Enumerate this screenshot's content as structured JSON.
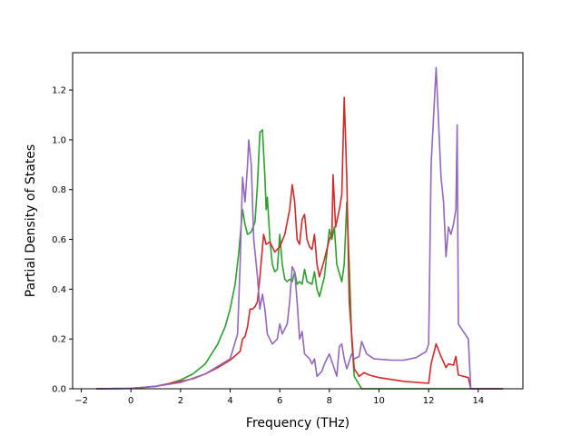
{
  "chart_data": {
    "type": "line",
    "title": "",
    "xlabel": "Frequency (THz)",
    "ylabel": "Partial Density of States",
    "xlim": [
      -2.35,
      15.8
    ],
    "ylim": [
      0,
      1.35
    ],
    "xticks": [
      -2,
      0,
      2,
      4,
      6,
      8,
      10,
      12,
      14
    ],
    "xtick_labels": [
      "−2",
      "0",
      "2",
      "4",
      "6",
      "8",
      "10",
      "12",
      "14"
    ],
    "yticks": [
      0.0,
      0.2,
      0.4,
      0.6,
      0.8,
      1.0,
      1.2
    ],
    "ytick_labels": [
      "0.0",
      "0.2",
      "0.4",
      "0.6",
      "0.8",
      "1.0",
      "1.2"
    ],
    "grid": false,
    "legend": "none",
    "series": [
      {
        "color": "#2ca02c",
        "points": [
          [
            -1.4,
            0.0
          ],
          [
            -0.5,
            0.0
          ],
          [
            0.0,
            0.002
          ],
          [
            0.5,
            0.005
          ],
          [
            1.0,
            0.01
          ],
          [
            1.5,
            0.02
          ],
          [
            2.0,
            0.035
          ],
          [
            2.5,
            0.06
          ],
          [
            3.0,
            0.1
          ],
          [
            3.5,
            0.18
          ],
          [
            3.8,
            0.25
          ],
          [
            4.0,
            0.32
          ],
          [
            4.2,
            0.42
          ],
          [
            4.35,
            0.55
          ],
          [
            4.5,
            0.72
          ],
          [
            4.6,
            0.66
          ],
          [
            4.7,
            0.62
          ],
          [
            4.85,
            0.63
          ],
          [
            5.0,
            0.67
          ],
          [
            5.1,
            0.82
          ],
          [
            5.2,
            1.03
          ],
          [
            5.3,
            1.04
          ],
          [
            5.4,
            0.85
          ],
          [
            5.45,
            0.72
          ],
          [
            5.5,
            0.77
          ],
          [
            5.6,
            0.6
          ],
          [
            5.7,
            0.5
          ],
          [
            5.8,
            0.47
          ],
          [
            5.9,
            0.48
          ],
          [
            6.0,
            0.62
          ],
          [
            6.1,
            0.5
          ],
          [
            6.2,
            0.44
          ],
          [
            6.3,
            0.43
          ],
          [
            6.4,
            0.44
          ],
          [
            6.5,
            0.43
          ],
          [
            6.6,
            0.47
          ],
          [
            6.7,
            0.42
          ],
          [
            6.8,
            0.43
          ],
          [
            6.9,
            0.42
          ],
          [
            7.0,
            0.48
          ],
          [
            7.1,
            0.43
          ],
          [
            7.3,
            0.42
          ],
          [
            7.4,
            0.47
          ],
          [
            7.5,
            0.4
          ],
          [
            7.6,
            0.37
          ],
          [
            7.8,
            0.45
          ],
          [
            8.0,
            0.64
          ],
          [
            8.1,
            0.6
          ],
          [
            8.2,
            0.65
          ],
          [
            8.3,
            0.5
          ],
          [
            8.5,
            0.43
          ],
          [
            8.6,
            0.5
          ],
          [
            8.7,
            0.75
          ],
          [
            8.8,
            0.5
          ],
          [
            8.9,
            0.2
          ],
          [
            9.0,
            0.05
          ],
          [
            9.3,
            0.0
          ],
          [
            10.0,
            0.0
          ],
          [
            12.0,
            0.0
          ],
          [
            15.0,
            0.0
          ]
        ]
      },
      {
        "color": "#d62728",
        "points": [
          [
            -1.4,
            0.0
          ],
          [
            0.0,
            0.002
          ],
          [
            1.0,
            0.01
          ],
          [
            2.0,
            0.03
          ],
          [
            2.5,
            0.04
          ],
          [
            3.0,
            0.06
          ],
          [
            3.5,
            0.085
          ],
          [
            4.0,
            0.115
          ],
          [
            4.4,
            0.15
          ],
          [
            4.5,
            0.2
          ],
          [
            4.6,
            0.21
          ],
          [
            4.7,
            0.25
          ],
          [
            4.8,
            0.32
          ],
          [
            4.9,
            0.32
          ],
          [
            5.0,
            0.33
          ],
          [
            5.1,
            0.35
          ],
          [
            5.2,
            0.45
          ],
          [
            5.35,
            0.62
          ],
          [
            5.45,
            0.58
          ],
          [
            5.6,
            0.59
          ],
          [
            5.8,
            0.55
          ],
          [
            6.0,
            0.57
          ],
          [
            6.2,
            0.62
          ],
          [
            6.4,
            0.72
          ],
          [
            6.5,
            0.82
          ],
          [
            6.6,
            0.75
          ],
          [
            6.7,
            0.6
          ],
          [
            6.8,
            0.58
          ],
          [
            6.9,
            0.68
          ],
          [
            7.0,
            0.7
          ],
          [
            7.1,
            0.6
          ],
          [
            7.2,
            0.57
          ],
          [
            7.3,
            0.56
          ],
          [
            7.4,
            0.62
          ],
          [
            7.5,
            0.5
          ],
          [
            7.6,
            0.45
          ],
          [
            7.8,
            0.52
          ],
          [
            8.0,
            0.6
          ],
          [
            8.1,
            0.62
          ],
          [
            8.15,
            0.86
          ],
          [
            8.25,
            0.65
          ],
          [
            8.4,
            0.72
          ],
          [
            8.5,
            0.78
          ],
          [
            8.6,
            1.17
          ],
          [
            8.7,
            0.85
          ],
          [
            8.8,
            0.35
          ],
          [
            9.0,
            0.08
          ],
          [
            9.2,
            0.05
          ],
          [
            9.4,
            0.065
          ],
          [
            9.6,
            0.055
          ],
          [
            10.0,
            0.045
          ],
          [
            11.0,
            0.03
          ],
          [
            12.0,
            0.022
          ],
          [
            12.1,
            0.1
          ],
          [
            12.3,
            0.18
          ],
          [
            12.5,
            0.13
          ],
          [
            12.7,
            0.085
          ],
          [
            12.8,
            0.1
          ],
          [
            13.0,
            0.095
          ],
          [
            13.1,
            0.13
          ],
          [
            13.2,
            0.055
          ],
          [
            13.6,
            0.045
          ],
          [
            13.7,
            0.0
          ],
          [
            15.0,
            0.0
          ]
        ]
      },
      {
        "color": "#9467bd",
        "points": [
          [
            -1.4,
            0.0
          ],
          [
            0.0,
            0.002
          ],
          [
            1.0,
            0.01
          ],
          [
            2.0,
            0.025
          ],
          [
            3.0,
            0.06
          ],
          [
            4.0,
            0.12
          ],
          [
            4.3,
            0.22
          ],
          [
            4.4,
            0.5
          ],
          [
            4.5,
            0.85
          ],
          [
            4.6,
            0.75
          ],
          [
            4.7,
            0.9
          ],
          [
            4.75,
            1.0
          ],
          [
            4.85,
            0.9
          ],
          [
            4.95,
            0.6
          ],
          [
            5.1,
            0.45
          ],
          [
            5.2,
            0.32
          ],
          [
            5.3,
            0.38
          ],
          [
            5.4,
            0.32
          ],
          [
            5.5,
            0.22
          ],
          [
            5.7,
            0.18
          ],
          [
            5.9,
            0.2
          ],
          [
            6.0,
            0.26
          ],
          [
            6.1,
            0.22
          ],
          [
            6.3,
            0.26
          ],
          [
            6.4,
            0.35
          ],
          [
            6.5,
            0.49
          ],
          [
            6.6,
            0.47
          ],
          [
            6.7,
            0.35
          ],
          [
            6.8,
            0.2
          ],
          [
            6.9,
            0.23
          ],
          [
            7.0,
            0.14
          ],
          [
            7.2,
            0.12
          ],
          [
            7.3,
            0.1
          ],
          [
            7.4,
            0.12
          ],
          [
            7.5,
            0.05
          ],
          [
            7.7,
            0.07
          ],
          [
            7.8,
            0.1
          ],
          [
            8.0,
            0.14
          ],
          [
            8.2,
            0.08
          ],
          [
            8.3,
            0.05
          ],
          [
            8.4,
            0.17
          ],
          [
            8.5,
            0.18
          ],
          [
            8.6,
            0.12
          ],
          [
            8.7,
            0.08
          ],
          [
            8.9,
            0.14
          ],
          [
            9.0,
            0.12
          ],
          [
            9.2,
            0.13
          ],
          [
            9.3,
            0.19
          ],
          [
            9.5,
            0.14
          ],
          [
            9.8,
            0.12
          ],
          [
            10.5,
            0.115
          ],
          [
            11.0,
            0.115
          ],
          [
            11.5,
            0.125
          ],
          [
            11.9,
            0.15
          ],
          [
            12.0,
            0.18
          ],
          [
            12.1,
            0.9
          ],
          [
            12.3,
            1.29
          ],
          [
            12.5,
            0.85
          ],
          [
            12.6,
            0.75
          ],
          [
            12.7,
            0.53
          ],
          [
            12.8,
            0.65
          ],
          [
            12.9,
            0.62
          ],
          [
            13.0,
            0.66
          ],
          [
            13.1,
            0.72
          ],
          [
            13.15,
            1.06
          ],
          [
            13.2,
            0.26
          ],
          [
            13.4,
            0.23
          ],
          [
            13.6,
            0.2
          ],
          [
            13.7,
            0.0
          ],
          [
            15.0,
            0.0
          ]
        ]
      }
    ]
  }
}
